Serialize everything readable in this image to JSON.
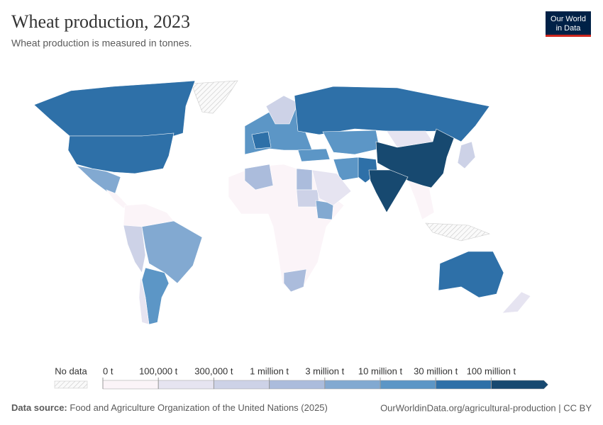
{
  "header": {
    "title": "Wheat production, 2023",
    "subtitle": "Wheat production is measured in tonnes.",
    "logo": [
      "Our World",
      "in Data"
    ]
  },
  "legend": {
    "no_data": "No data",
    "bins": [
      {
        "label": "0 t",
        "color": "#fbf4f8"
      },
      {
        "label": "100,000 t",
        "color": "#e6e4f1"
      },
      {
        "label": "300,000 t",
        "color": "#cdd2e7"
      },
      {
        "label": "1 million t",
        "color": "#abbcdc"
      },
      {
        "label": "3 million t",
        "color": "#82a9d1"
      },
      {
        "label": "10 million t",
        "color": "#5c96c6"
      },
      {
        "label": "30 million t",
        "color": "#2e70a8"
      },
      {
        "label": "100 million t",
        "color": "#174970"
      }
    ]
  },
  "footer": {
    "source_label": "Data source:",
    "source": "Food and Agriculture Organization of the United Nations (2025)",
    "url": "OurWorldinData.org/agricultural-production | CC BY"
  }
}
